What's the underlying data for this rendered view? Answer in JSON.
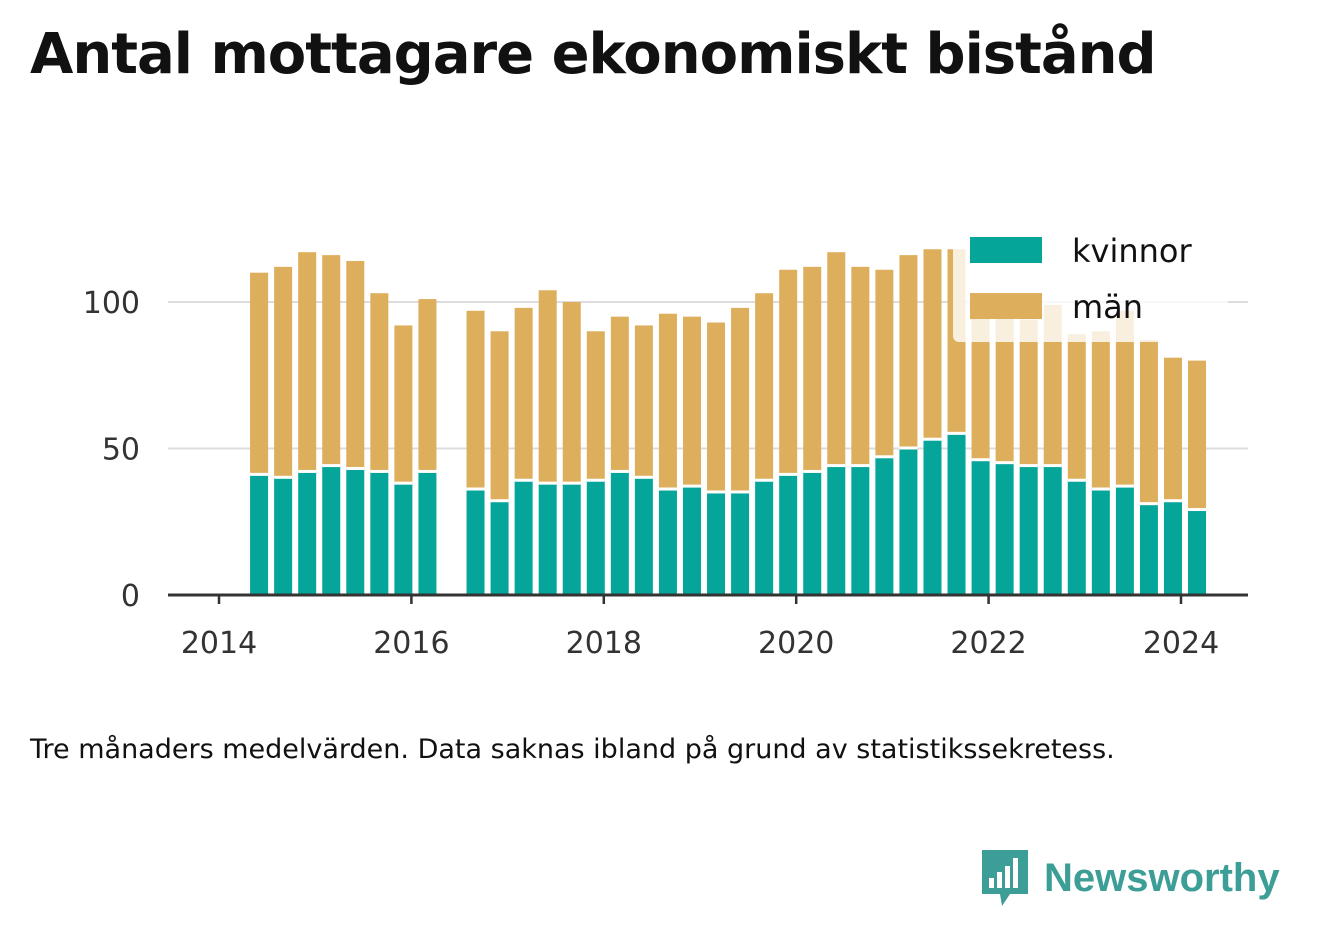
{
  "title": "Antal mottagare ekonomiskt bistånd",
  "note": "Tre månaders medelvärden. Data saknas ibland på grund av statistikssekretess.",
  "brand": "Newsworthy",
  "colors": {
    "kvinnor": "#06a59a",
    "man": "#ddae5b",
    "grid": "#dddddd",
    "axis": "#333333",
    "logo": "#3c9e96"
  },
  "chart_data": {
    "type": "bar",
    "stacked": true,
    "x": [
      "2014-06",
      "2014-09",
      "2014-12",
      "2015-03",
      "2015-06",
      "2015-09",
      "2015-12",
      "2016-03",
      "2016-09",
      "2016-12",
      "2017-03",
      "2017-06",
      "2017-09",
      "2017-12",
      "2018-03",
      "2018-06",
      "2018-09",
      "2018-12",
      "2019-03",
      "2019-06",
      "2019-09",
      "2019-12",
      "2020-03",
      "2020-06",
      "2020-09",
      "2020-12",
      "2021-03",
      "2021-06",
      "2021-09",
      "2021-12",
      "2022-03",
      "2022-06",
      "2022-09",
      "2022-12",
      "2023-03",
      "2023-06",
      "2023-09",
      "2023-12",
      "2024-03"
    ],
    "series": [
      {
        "name": "kvinnor",
        "color": "#06a59a",
        "values": [
          41,
          40,
          42,
          44,
          43,
          42,
          38,
          42,
          36,
          32,
          39,
          38,
          38,
          39,
          42,
          40,
          36,
          37,
          35,
          35,
          39,
          41,
          42,
          44,
          44,
          47,
          50,
          53,
          55,
          46,
          45,
          44,
          44,
          39,
          36,
          37,
          31,
          32,
          29
        ]
      },
      {
        "name": "män",
        "color": "#ddae5b",
        "values": [
          69,
          72,
          75,
          72,
          71,
          61,
          54,
          59,
          61,
          58,
          59,
          66,
          62,
          51,
          53,
          52,
          60,
          58,
          58,
          63,
          64,
          70,
          70,
          73,
          68,
          64,
          66,
          65,
          63,
          49,
          50,
          50,
          55,
          50,
          54,
          60,
          56,
          49,
          51
        ]
      }
    ],
    "yticks": [
      0,
      50,
      100
    ],
    "xticks": [
      "2014",
      "2016",
      "2018",
      "2020",
      "2022",
      "2024"
    ],
    "ylim": [
      0,
      125
    ],
    "grid": true,
    "legend_position": "top-right",
    "legend": [
      "kvinnor",
      "män"
    ],
    "xlabel": "",
    "ylabel": ""
  }
}
